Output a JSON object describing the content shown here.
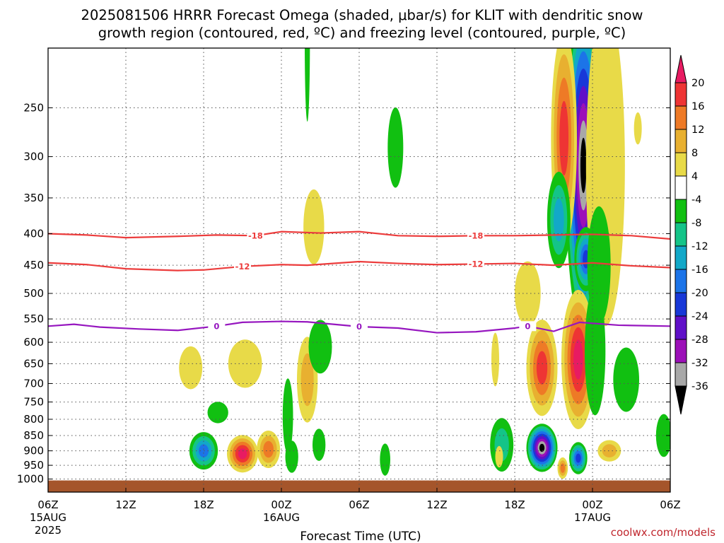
{
  "chart_data": {
    "type": "heatmap",
    "title_line1": "2025081506 HRRR Forecast Omega (shaded, μbar/s) for KLIT with dendritic snow",
    "title_line2": "growth region (contoured, red, ºC) and freezing level (contoured, purple, ºC)",
    "xlabel": "Forecast Time (UTC)",
    "ylabel": "",
    "credit": "coolwx.com/models",
    "y_scale": "log-pressure, inverted",
    "ylim": [
      1050,
      200
    ],
    "y_ticks": [
      250,
      300,
      350,
      400,
      450,
      500,
      550,
      600,
      650,
      700,
      750,
      800,
      850,
      900,
      950,
      1000
    ],
    "xlim_hours": [
      0,
      48
    ],
    "x_ticks": [
      {
        "h": 0,
        "label": "06Z",
        "date": "15AUG",
        "year": "2025"
      },
      {
        "h": 6,
        "label": "12Z",
        "date": "",
        "year": ""
      },
      {
        "h": 12,
        "label": "18Z",
        "date": "",
        "year": ""
      },
      {
        "h": 18,
        "label": "00Z",
        "date": "16AUG",
        "year": ""
      },
      {
        "h": 24,
        "label": "06Z",
        "date": "",
        "year": ""
      },
      {
        "h": 30,
        "label": "12Z",
        "date": "",
        "year": ""
      },
      {
        "h": 36,
        "label": "18Z",
        "date": "",
        "year": ""
      },
      {
        "h": 42,
        "label": "00Z",
        "date": "17AUG",
        "year": ""
      },
      {
        "h": 48,
        "label": "06Z",
        "date": "",
        "year": ""
      }
    ],
    "grid": true,
    "colorbar": {
      "labels": [
        "20",
        "16",
        "12",
        "8",
        "4",
        "-4",
        "-8",
        "-12",
        "-16",
        "-20",
        "-24",
        "-28",
        "-32",
        "-36"
      ],
      "colors": [
        "#e81b62",
        "#ee3434",
        "#ee7a26",
        "#e8b030",
        "#e8da48",
        "#ffffff",
        "#11c011",
        "#14c488",
        "#12a8c8",
        "#1c74e8",
        "#1838d8",
        "#6010c8",
        "#9c10b8",
        "#a8a8a8",
        "#000000"
      ]
    },
    "terrain_color": "#a5552b",
    "contours": [
      {
        "name": "dendritic growth",
        "value": -18,
        "color": "#ec3c3c",
        "labels": [
          "-18",
          "-18"
        ],
        "points": [
          [
            0,
            400
          ],
          [
            3,
            402
          ],
          [
            6,
            406
          ],
          [
            10,
            404
          ],
          [
            13,
            402
          ],
          [
            16,
            403
          ],
          [
            18,
            397
          ],
          [
            21,
            399
          ],
          [
            24,
            397
          ],
          [
            27,
            403
          ],
          [
            30,
            404
          ],
          [
            33,
            403
          ],
          [
            36,
            403
          ],
          [
            39,
            402
          ],
          [
            42,
            401
          ],
          [
            45,
            403
          ],
          [
            48,
            408
          ]
        ]
      },
      {
        "name": "dendritic growth",
        "value": -12,
        "color": "#ec3c3c",
        "labels": [
          "-12",
          "-12"
        ],
        "points": [
          [
            0,
            446
          ],
          [
            3,
            449
          ],
          [
            6,
            456
          ],
          [
            10,
            459
          ],
          [
            12,
            458
          ],
          [
            15,
            452
          ],
          [
            18,
            449
          ],
          [
            20,
            450
          ],
          [
            24,
            444
          ],
          [
            27,
            447
          ],
          [
            30,
            449
          ],
          [
            33,
            448
          ],
          [
            36,
            447
          ],
          [
            39,
            450
          ],
          [
            42,
            446
          ],
          [
            45,
            451
          ],
          [
            48,
            454
          ]
        ]
      },
      {
        "name": "freezing level",
        "value": 0,
        "color": "#9616bf",
        "labels": [
          "0",
          "0",
          "0"
        ],
        "points": [
          [
            0,
            565
          ],
          [
            2,
            561
          ],
          [
            4,
            567
          ],
          [
            7,
            571
          ],
          [
            10,
            574
          ],
          [
            13,
            565
          ],
          [
            15,
            557
          ],
          [
            18,
            555
          ],
          [
            20,
            556
          ],
          [
            24,
            566
          ],
          [
            27,
            569
          ],
          [
            30,
            579
          ],
          [
            33,
            577
          ],
          [
            36,
            569
          ],
          [
            37,
            565
          ],
          [
            39,
            576
          ],
          [
            41,
            557
          ],
          [
            44,
            563
          ],
          [
            48,
            565
          ]
        ]
      }
    ],
    "omega_cells": [
      {
        "h": 41.3,
        "p": 310,
        "rh": 1.4,
        "rp": 0.62,
        "levels": [
          -4,
          -8,
          -12,
          -16,
          -20,
          -24,
          -28,
          -32,
          -36
        ]
      },
      {
        "h": 39.8,
        "p": 280,
        "rh": 1.0,
        "rp": 0.4,
        "levels": [
          4,
          8,
          12,
          16
        ]
      },
      {
        "h": 43.0,
        "p": 310,
        "rh": 1.5,
        "rp": 0.6,
        "levels": [
          4
        ]
      },
      {
        "h": 41.5,
        "p": 440,
        "rh": 0.9,
        "rp": 0.12,
        "levels": [
          -4,
          -8,
          -12,
          -16,
          -20
        ]
      },
      {
        "h": 39.4,
        "p": 380,
        "rh": 0.9,
        "rp": 0.18,
        "levels": [
          -4,
          -8,
          -12
        ]
      },
      {
        "h": 42.5,
        "p": 450,
        "rh": 0.9,
        "rp": 0.22,
        "levels": [
          -4
        ]
      },
      {
        "h": 40.9,
        "p": 640,
        "rh": 1.3,
        "rp": 0.26,
        "levels": [
          4,
          8,
          12,
          16,
          20
        ]
      },
      {
        "h": 38.1,
        "p": 660,
        "rh": 1.2,
        "rp": 0.18,
        "levels": [
          4,
          8,
          12,
          16
        ]
      },
      {
        "h": 44.6,
        "p": 690,
        "rh": 1.0,
        "rp": 0.12,
        "levels": [
          -4
        ]
      },
      {
        "h": 42.2,
        "p": 620,
        "rh": 0.8,
        "rp": 0.24,
        "levels": [
          -4
        ]
      },
      {
        "h": 38.1,
        "p": 890,
        "rh": 1.2,
        "rp": 0.09,
        "levels": [
          -4,
          -8,
          -12,
          -16,
          -20,
          -24,
          -28,
          -32,
          -36
        ]
      },
      {
        "h": 40.9,
        "p": 925,
        "rh": 0.7,
        "rp": 0.06,
        "levels": [
          -4,
          -8,
          -12,
          -16,
          -20
        ]
      },
      {
        "h": 39.7,
        "p": 960,
        "rh": 0.4,
        "rp": 0.04,
        "levels": [
          4,
          8,
          12
        ]
      },
      {
        "h": 43.3,
        "p": 900,
        "rh": 0.9,
        "rp": 0.04,
        "levels": [
          4,
          8
        ]
      },
      {
        "h": 47.5,
        "p": 850,
        "rh": 0.6,
        "rp": 0.08,
        "levels": [
          -4
        ]
      },
      {
        "h": 35.0,
        "p": 880,
        "rh": 0.9,
        "rp": 0.1,
        "levels": [
          -4,
          -8
        ]
      },
      {
        "h": 12.0,
        "p": 900,
        "rh": 1.1,
        "rp": 0.07,
        "levels": [
          -4,
          -8,
          -12,
          -16
        ]
      },
      {
        "h": 15.0,
        "p": 910,
        "rh": 1.2,
        "rp": 0.07,
        "levels": [
          4,
          8,
          12,
          16,
          20
        ]
      },
      {
        "h": 17.0,
        "p": 895,
        "rh": 0.9,
        "rp": 0.07,
        "levels": [
          4,
          8,
          12
        ]
      },
      {
        "h": 13.1,
        "p": 780,
        "rh": 0.8,
        "rp": 0.04,
        "levels": [
          -4
        ]
      },
      {
        "h": 11.0,
        "p": 660,
        "rh": 0.9,
        "rp": 0.08,
        "levels": [
          4
        ]
      },
      {
        "h": 15.2,
        "p": 650,
        "rh": 1.3,
        "rp": 0.09,
        "levels": [
          4
        ]
      },
      {
        "h": 20.0,
        "p": 690,
        "rh": 0.8,
        "rp": 0.16,
        "levels": [
          4,
          8
        ]
      },
      {
        "h": 21.0,
        "p": 610,
        "rh": 0.9,
        "rp": 0.1,
        "levels": [
          -4
        ]
      },
      {
        "h": 18.5,
        "p": 790,
        "rh": 0.4,
        "rp": 0.14,
        "levels": [
          -4
        ]
      },
      {
        "h": 18.8,
        "p": 920,
        "rh": 0.5,
        "rp": 0.06,
        "levels": [
          -4
        ]
      },
      {
        "h": 20.9,
        "p": 880,
        "rh": 0.5,
        "rp": 0.06,
        "levels": [
          -4
        ]
      },
      {
        "h": 20.5,
        "p": 390,
        "rh": 0.8,
        "rp": 0.14,
        "levels": [
          4
        ]
      },
      {
        "h": 20.0,
        "p": 195,
        "rh": 0.2,
        "rp": 0.3,
        "levels": [
          -4
        ]
      },
      {
        "h": 26.8,
        "p": 290,
        "rh": 0.6,
        "rp": 0.15,
        "levels": [
          -4
        ]
      },
      {
        "h": 26.0,
        "p": 930,
        "rh": 0.4,
        "rp": 0.06,
        "levels": [
          -4
        ]
      },
      {
        "h": 34.5,
        "p": 640,
        "rh": 0.3,
        "rp": 0.1,
        "levels": [
          4
        ]
      },
      {
        "h": 37.0,
        "p": 500,
        "rh": 1.0,
        "rp": 0.12,
        "levels": [
          4
        ]
      },
      {
        "h": 45.5,
        "p": 270,
        "rh": 0.3,
        "rp": 0.06,
        "levels": [
          4
        ]
      },
      {
        "h": 34.8,
        "p": 920,
        "rh": 0.3,
        "rp": 0.04,
        "levels": [
          4
        ]
      }
    ]
  }
}
